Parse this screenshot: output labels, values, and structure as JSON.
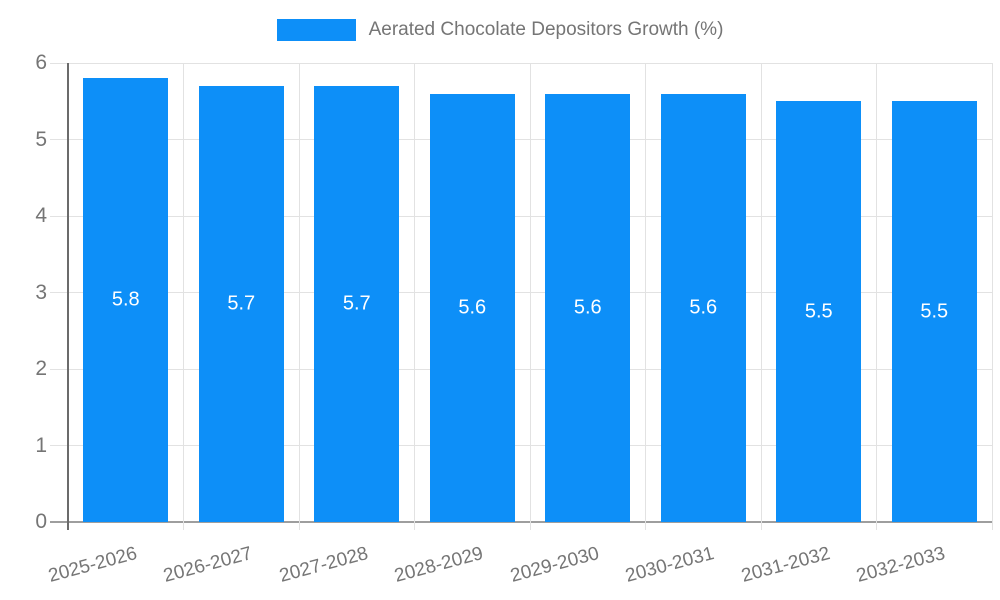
{
  "chart_data": {
    "type": "bar",
    "title": "Aerated Chocolate Depositors Growth (%)",
    "legend_label": "Aerated Chocolate Depositors Growth (%)",
    "legend_position": "top",
    "categories": [
      "2025-2026",
      "2026-2027",
      "2027-2028",
      "2028-2029",
      "2029-2030",
      "2030-2031",
      "2031-2032",
      "2032-2033"
    ],
    "series": [
      {
        "name": "Aerated Chocolate Depositors Growth (%)",
        "values": [
          5.8,
          5.7,
          5.7,
          5.6,
          5.6,
          5.6,
          5.5,
          5.5
        ]
      }
    ],
    "bar_labels": [
      "5.8",
      "5.7",
      "5.7",
      "5.6",
      "5.6",
      "5.6",
      "5.5",
      "5.5"
    ],
    "xlabel": "",
    "ylabel": "",
    "ylim": [
      0,
      6
    ],
    "ytick_step": 1,
    "ytick_labels": [
      "0",
      "1",
      "2",
      "3",
      "4",
      "5",
      "6"
    ],
    "grid": true,
    "colors": {
      "bar": "#0d8ff8",
      "bar_label_text": "#ffffff",
      "axis_text": "#757575",
      "gridline": "#e2e2e2",
      "axis_line": "#6b6b6b",
      "baseline": "#9e9e9e",
      "background": "#ffffff"
    }
  }
}
